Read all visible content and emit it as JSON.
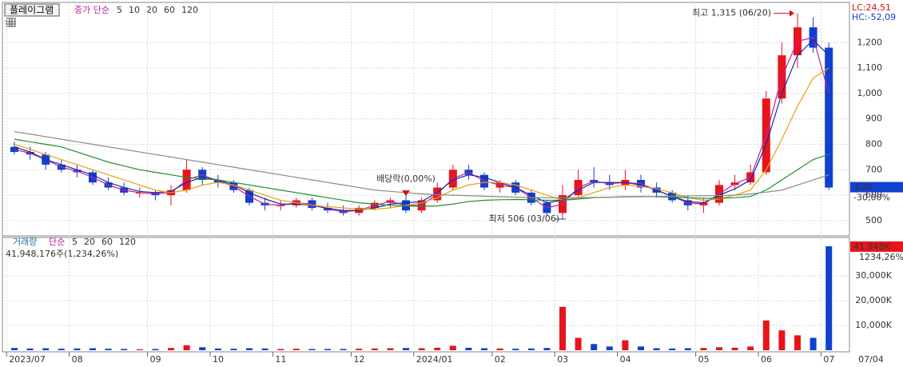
{
  "chart_data": {
    "type": "candlestick",
    "title": "플레이그램",
    "ma_label": "종가 단순",
    "lc_label": "LC:24,51",
    "hc_label": "HC:-52,09",
    "last_price": 630,
    "last_change_label": "-30,00%",
    "categories": [
      "2023/07",
      null,
      null,
      null,
      "08",
      null,
      null,
      null,
      null,
      "09",
      null,
      null,
      null,
      "10",
      null,
      null,
      null,
      "11",
      null,
      null,
      null,
      null,
      "12",
      null,
      null,
      null,
      "2024/01",
      null,
      null,
      null,
      null,
      "02",
      null,
      null,
      null,
      "03",
      null,
      null,
      null,
      "04",
      null,
      null,
      null,
      null,
      "05",
      null,
      null,
      null,
      "06",
      null,
      null,
      null,
      "07"
    ],
    "date_label": "07/04",
    "open": [
      790,
      770,
      760,
      720,
      700,
      690,
      650,
      630,
      610,
      610,
      600,
      620,
      700,
      660,
      650,
      620,
      570,
      560,
      560,
      580,
      550,
      540,
      530,
      550,
      570,
      580,
      540,
      580,
      630,
      700,
      680,
      630,
      650,
      610,
      570,
      530,
      600,
      660,
      650,
      640,
      660,
      630,
      610,
      580,
      560,
      570,
      640,
      650,
      690,
      980,
      1150,
      1260,
      1180
    ],
    "high": [
      810,
      790,
      770,
      740,
      720,
      700,
      670,
      650,
      630,
      620,
      640,
      740,
      710,
      680,
      660,
      630,
      590,
      580,
      590,
      590,
      570,
      560,
      560,
      580,
      590,
      600,
      590,
      650,
      720,
      720,
      690,
      660,
      660,
      620,
      580,
      640,
      700,
      710,
      680,
      700,
      680,
      650,
      620,
      600,
      590,
      660,
      680,
      720,
      1010,
      1200,
      1315,
      1300,
      1200
    ],
    "low": [
      760,
      740,
      700,
      690,
      670,
      640,
      620,
      600,
      590,
      580,
      560,
      610,
      640,
      630,
      610,
      560,
      540,
      540,
      550,
      540,
      530,
      520,
      520,
      540,
      550,
      530,
      530,
      570,
      620,
      660,
      620,
      610,
      600,
      560,
      520,
      506,
      590,
      630,
      620,
      620,
      610,
      590,
      570,
      540,
      530,
      560,
      620,
      640,
      680,
      960,
      1100,
      1160,
      620
    ],
    "close": [
      770,
      760,
      720,
      700,
      690,
      650,
      630,
      610,
      610,
      600,
      620,
      700,
      660,
      650,
      620,
      570,
      560,
      560,
      580,
      550,
      540,
      530,
      550,
      570,
      580,
      540,
      580,
      630,
      700,
      680,
      630,
      650,
      610,
      570,
      530,
      600,
      660,
      650,
      640,
      660,
      630,
      610,
      580,
      560,
      570,
      640,
      650,
      690,
      980,
      1150,
      1260,
      1180,
      630
    ],
    "up_color": "#e8141c",
    "down_color": "#1040d0",
    "series": [
      {
        "name": "5",
        "color": "#c0209c",
        "values": [
          780,
          765,
          740,
          710,
          695,
          670,
          640,
          620,
          610,
          605,
          610,
          660,
          680,
          655,
          635,
          595,
          565,
          560,
          570,
          565,
          545,
          535,
          540,
          560,
          575,
          560,
          560,
          605,
          665,
          690,
          655,
          640,
          630,
          590,
          550,
          565,
          630,
          655,
          645,
          650,
          645,
          620,
          595,
          570,
          565,
          605,
          645,
          670,
          835,
          1065,
          1205,
          1220,
          1000
        ]
      },
      {
        "name": "10",
        "color": "#1c2aa0",
        "values": [
          790,
          770,
          740,
          720,
          700,
          680,
          650,
          630,
          615,
          610,
          615,
          650,
          670,
          660,
          640,
          610,
          585,
          565,
          565,
          560,
          548,
          540,
          540,
          550,
          565,
          570,
          575,
          610,
          660,
          680,
          670,
          650,
          630,
          600,
          570,
          580,
          620,
          650,
          650,
          650,
          640,
          620,
          595,
          575,
          570,
          600,
          625,
          660,
          800,
          1000,
          1150,
          1210,
          1150
        ]
      },
      {
        "name": "20",
        "color": "#e8a010",
        "values": [
          800,
          780,
          760,
          740,
          720,
          700,
          680,
          660,
          640,
          620,
          610,
          620,
          640,
          650,
          640,
          620,
          600,
          580,
          570,
          560,
          555,
          550,
          545,
          545,
          550,
          560,
          570,
          590,
          620,
          640,
          650,
          650,
          640,
          620,
          600,
          580,
          590,
          610,
          630,
          640,
          635,
          625,
          610,
          590,
          580,
          585,
          600,
          620,
          700,
          820,
          950,
          1060,
          1100
        ]
      },
      {
        "name": "60",
        "color": "#1a9030",
        "values": [
          820,
          810,
          800,
          790,
          770,
          750,
          730,
          715,
          700,
          690,
          680,
          670,
          665,
          660,
          650,
          640,
          630,
          620,
          610,
          600,
          590,
          580,
          570,
          565,
          560,
          558,
          556,
          558,
          565,
          575,
          580,
          582,
          583,
          582,
          580,
          580,
          585,
          590,
          592,
          594,
          595,
          594,
          592,
          590,
          588,
          588,
          590,
          595,
          620,
          660,
          700,
          740,
          760
        ]
      },
      {
        "name": "120",
        "color": "#8a8a8a",
        "values": [
          850,
          840,
          830,
          820,
          810,
          800,
          790,
          780,
          770,
          760,
          750,
          740,
          730,
          720,
          710,
          700,
          690,
          680,
          670,
          660,
          650,
          640,
          630,
          620,
          615,
          610,
          605,
          602,
          600,
          598,
          596,
          594,
          592,
          591,
          590,
          590,
          590,
          591,
          592,
          593,
          594,
          595,
          596,
          597,
          598,
          599,
          600,
          605,
          612,
          620,
          640,
          660,
          680
        ]
      }
    ],
    "ylim": [
      440,
      1358
    ],
    "yticks": [
      500,
      600,
      700,
      800,
      900,
      {
        "value": 1000,
        "label": "1,000"
      },
      {
        "value": 1100,
        "label": "1,100"
      },
      {
        "value": 1200,
        "label": "1,200"
      }
    ],
    "annotations": [
      {
        "text": "최고 1,315 (06/20)",
        "index": 50,
        "value": 1315
      },
      {
        "text": "최저 506 (03/06)",
        "index": 35,
        "value": 506
      },
      {
        "text": "배당락(0,00%)",
        "index": 25,
        "value": 600
      }
    ],
    "volume": {
      "label": "거래량",
      "ma_label": "단순",
      "ma_names": [
        {
          "name": "5",
          "color": "#c0209c"
        },
        {
          "name": "20",
          "color": "#e8a010"
        },
        {
          "name": "60",
          "color": "#1a9030"
        },
        {
          "name": "120",
          "color": "#8a8a8a"
        }
      ],
      "summary": "41,948,176주(1,234,26%)",
      "values": [
        900,
        700,
        800,
        600,
        700,
        800,
        600,
        500,
        400,
        500,
        900,
        2000,
        1200,
        700,
        600,
        800,
        700,
        500,
        600,
        500,
        500,
        500,
        600,
        700,
        800,
        900,
        800,
        1000,
        1800,
        1000,
        800,
        700,
        600,
        700,
        900,
        17500,
        5000,
        2500,
        1500,
        4000,
        1500,
        800,
        700,
        800,
        900,
        1200,
        1000,
        1500,
        12000,
        8000,
        6000,
        5000,
        41948
      ],
      "last_label": "41,948K",
      "last_change_label": "1234,26%",
      "ylim": [
        0,
        45160
      ],
      "yticks": [
        {
          "value": 10000,
          "label": "10,000K"
        },
        {
          "value": 20000,
          "label": "20,000K"
        },
        {
          "value": 30000,
          "label": "30,000K"
        }
      ]
    }
  }
}
